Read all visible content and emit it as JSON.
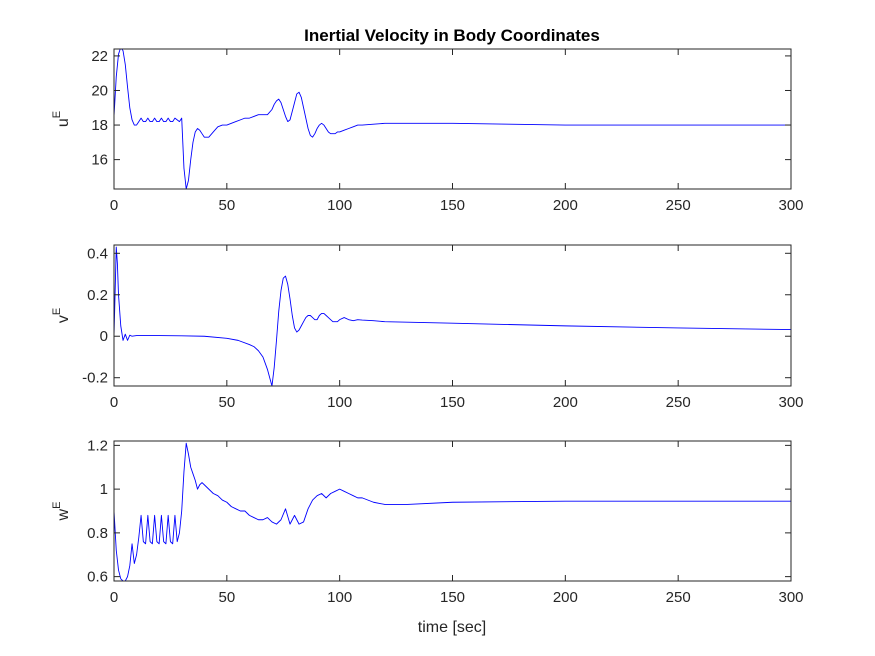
{
  "title": "Inertial Velocity in Body Coordinates",
  "xlabel": "time [sec]",
  "colors": {
    "line": "#0000ff",
    "axes": "#262626",
    "background": "#ffffff"
  },
  "chart_data": [
    {
      "type": "line",
      "title": "Inertial Velocity in Body Coordinates",
      "ylabel_base": "u",
      "ylabel_sup": "E",
      "xlim": [
        0,
        300
      ],
      "ylim": [
        14.3,
        22.4
      ],
      "xticks": [
        0,
        50,
        100,
        150,
        200,
        250,
        300
      ],
      "yticks": [
        16,
        18,
        20,
        22
      ],
      "grid": false,
      "series": [
        {
          "x": [
            0,
            1,
            2,
            3,
            4,
            5,
            6,
            7,
            8,
            9,
            10,
            11,
            12,
            13,
            14,
            15,
            16,
            17,
            18,
            19,
            20,
            21,
            22,
            23,
            24,
            25,
            26,
            27,
            28,
            29,
            30,
            31,
            32,
            33,
            34,
            35,
            36,
            37,
            38,
            39,
            40,
            42,
            44,
            46,
            48,
            50,
            52,
            54,
            56,
            58,
            60,
            62,
            64,
            66,
            68,
            70,
            71,
            72,
            73,
            74,
            75,
            76,
            77,
            78,
            79,
            80,
            81,
            82,
            83,
            84,
            85,
            86,
            87,
            88,
            89,
            90,
            91,
            92,
            93,
            94,
            95,
            96,
            97,
            98,
            99,
            100,
            102,
            104,
            106,
            108,
            110,
            115,
            120,
            130,
            140,
            150,
            175,
            200,
            250,
            300
          ],
          "y": [
            18.5,
            20.8,
            22.1,
            22.5,
            22.3,
            21.5,
            20.2,
            19.0,
            18.3,
            18.0,
            18.0,
            18.2,
            18.4,
            18.2,
            18.2,
            18.4,
            18.2,
            18.2,
            18.4,
            18.2,
            18.2,
            18.4,
            18.2,
            18.2,
            18.4,
            18.2,
            18.2,
            18.4,
            18.3,
            18.2,
            18.4,
            15.5,
            14.3,
            14.8,
            16.0,
            17.0,
            17.6,
            17.8,
            17.7,
            17.5,
            17.3,
            17.3,
            17.6,
            17.9,
            18.0,
            18.0,
            18.1,
            18.2,
            18.3,
            18.4,
            18.4,
            18.5,
            18.6,
            18.6,
            18.6,
            18.9,
            19.2,
            19.4,
            19.5,
            19.3,
            18.9,
            18.5,
            18.2,
            18.3,
            18.8,
            19.3,
            19.8,
            19.9,
            19.6,
            19.0,
            18.4,
            17.8,
            17.4,
            17.3,
            17.5,
            17.8,
            18.0,
            18.1,
            18.0,
            17.8,
            17.6,
            17.5,
            17.5,
            17.5,
            17.6,
            17.6,
            17.7,
            17.8,
            17.9,
            18.0,
            18.0,
            18.05,
            18.1,
            18.1,
            18.1,
            18.1,
            18.05,
            18.0,
            18.0,
            18.0
          ]
        }
      ]
    },
    {
      "type": "line",
      "ylabel_base": "v",
      "ylabel_sup": "E",
      "xlim": [
        0,
        300
      ],
      "ylim": [
        -0.24,
        0.44
      ],
      "xticks": [
        0,
        50,
        100,
        150,
        200,
        250,
        300
      ],
      "yticks": [
        -0.2,
        0,
        0.2,
        0.4
      ],
      "grid": false,
      "series": [
        {
          "x": [
            0,
            1,
            1.5,
            2,
            3,
            4,
            5,
            6,
            7,
            8,
            10,
            15,
            20,
            30,
            40,
            50,
            55,
            60,
            62,
            64,
            66,
            67,
            68,
            69,
            70,
            71,
            72,
            73,
            74,
            75,
            76,
            77,
            78,
            79,
            80,
            81,
            82,
            83,
            84,
            85,
            86,
            87,
            88,
            89,
            90,
            91,
            92,
            93,
            94,
            95,
            96,
            97,
            98,
            99,
            100,
            102,
            104,
            106,
            108,
            110,
            115,
            120,
            130,
            150,
            200,
            250,
            300
          ],
          "y": [
            0.0,
            0.43,
            0.35,
            0.2,
            0.05,
            -0.02,
            0.01,
            -0.02,
            0.005,
            0.0,
            0.003,
            0.003,
            0.003,
            0.002,
            0.0,
            -0.01,
            -0.02,
            -0.04,
            -0.05,
            -0.07,
            -0.1,
            -0.13,
            -0.16,
            -0.2,
            -0.24,
            -0.15,
            -0.02,
            0.12,
            0.22,
            0.28,
            0.29,
            0.25,
            0.18,
            0.1,
            0.04,
            0.02,
            0.03,
            0.05,
            0.07,
            0.09,
            0.1,
            0.1,
            0.09,
            0.08,
            0.08,
            0.1,
            0.11,
            0.11,
            0.1,
            0.09,
            0.08,
            0.07,
            0.07,
            0.07,
            0.08,
            0.09,
            0.08,
            0.075,
            0.08,
            0.078,
            0.075,
            0.07,
            0.068,
            0.063,
            0.05,
            0.04,
            0.032
          ]
        }
      ]
    },
    {
      "type": "line",
      "ylabel_base": "w",
      "ylabel_sup": "E",
      "xlabel": "time [sec]",
      "xlim": [
        0,
        300
      ],
      "ylim": [
        0.58,
        1.22
      ],
      "xticks": [
        0,
        50,
        100,
        150,
        200,
        250,
        300
      ],
      "yticks": [
        0.6,
        0.8,
        1.0,
        1.2
      ],
      "ytick_labels": [
        "0.6",
        "0.8",
        "1",
        "1.2"
      ],
      "grid": false,
      "series": [
        {
          "x": [
            0,
            1,
            2,
            3,
            4,
            5,
            6,
            7,
            8,
            9,
            10,
            11,
            12,
            13,
            14,
            15,
            16,
            17,
            18,
            19,
            20,
            21,
            22,
            23,
            24,
            25,
            26,
            27,
            28,
            29,
            30,
            31,
            32,
            33,
            34,
            35,
            36,
            37,
            38,
            39,
            40,
            42,
            44,
            46,
            48,
            50,
            52,
            54,
            56,
            58,
            60,
            62,
            64,
            66,
            68,
            70,
            72,
            74,
            76,
            78,
            80,
            82,
            84,
            86,
            88,
            90,
            92,
            94,
            96,
            98,
            100,
            102,
            104,
            106,
            108,
            110,
            115,
            120,
            130,
            150,
            200,
            250,
            300
          ],
          "y": [
            0.9,
            0.72,
            0.63,
            0.59,
            0.58,
            0.58,
            0.6,
            0.65,
            0.75,
            0.66,
            0.7,
            0.78,
            0.88,
            0.76,
            0.75,
            0.88,
            0.76,
            0.75,
            0.88,
            0.76,
            0.75,
            0.88,
            0.76,
            0.75,
            0.88,
            0.76,
            0.75,
            0.88,
            0.76,
            0.8,
            0.9,
            1.08,
            1.21,
            1.16,
            1.1,
            1.07,
            1.04,
            1.0,
            1.02,
            1.03,
            1.02,
            1.0,
            0.98,
            0.97,
            0.95,
            0.94,
            0.92,
            0.91,
            0.9,
            0.9,
            0.88,
            0.87,
            0.86,
            0.86,
            0.87,
            0.85,
            0.84,
            0.86,
            0.91,
            0.84,
            0.88,
            0.84,
            0.85,
            0.91,
            0.95,
            0.97,
            0.98,
            0.96,
            0.98,
            0.99,
            1.0,
            0.99,
            0.98,
            0.97,
            0.96,
            0.96,
            0.94,
            0.93,
            0.93,
            0.94,
            0.945,
            0.945,
            0.945
          ]
        }
      ]
    }
  ]
}
